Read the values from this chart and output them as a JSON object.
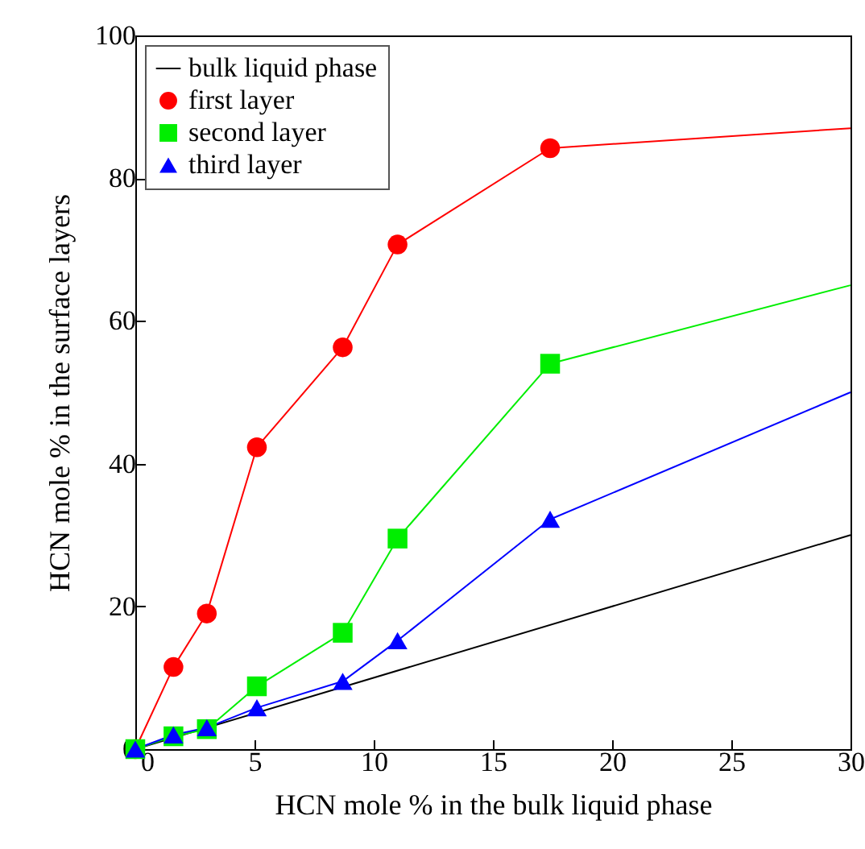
{
  "chart_data": {
    "type": "line",
    "xlabel": "HCN mole %  in the bulk liquid phase",
    "ylabel": "HCN mole %  in the surface layers",
    "xlim": [
      0,
      30
    ],
    "ylim": [
      0,
      100
    ],
    "xticks": [
      0,
      5,
      10,
      15,
      20,
      25,
      30
    ],
    "yticks": [
      0,
      20,
      40,
      60,
      80,
      100
    ],
    "grid": false,
    "legend": "top left",
    "series": [
      {
        "name": "bulk liquid phase",
        "color": "#000000",
        "marker": "none",
        "x": [
          0,
          30
        ],
        "values": [
          0,
          30
        ]
      },
      {
        "name": "first layer",
        "color": "#ff0000",
        "marker": "circle",
        "x": [
          0,
          1.6,
          3,
          5.1,
          8.7,
          11,
          17.4
        ],
        "values": [
          0,
          11.5,
          19,
          42.3,
          56.3,
          70.7,
          84.2
        ]
      },
      {
        "name": "second layer",
        "color": "#00ee00",
        "marker": "square",
        "x": [
          0,
          1.6,
          3,
          5.1,
          8.7,
          11,
          17.4
        ],
        "values": [
          0,
          1.8,
          2.8,
          8.8,
          16.3,
          29.5,
          54
        ]
      },
      {
        "name": "third layer",
        "color": "#0000ff",
        "marker": "triangle",
        "x": [
          0,
          1.6,
          3,
          5.1,
          8.7,
          11,
          17.4
        ],
        "values": [
          0,
          2,
          3,
          5.8,
          9.5,
          15.2,
          32.2
        ]
      },
      {
        "color": "#ff0000",
        "marker": "none",
        "x": [
          17.4,
          30
        ],
        "values": [
          84.2,
          87
        ]
      },
      {
        "color": "#00ee00",
        "marker": "none",
        "x": [
          17.4,
          30
        ],
        "values": [
          54,
          65
        ]
      },
      {
        "color": "#0000ff",
        "marker": "none",
        "x": [
          17.4,
          30
        ],
        "values": [
          32.2,
          50
        ]
      }
    ]
  }
}
